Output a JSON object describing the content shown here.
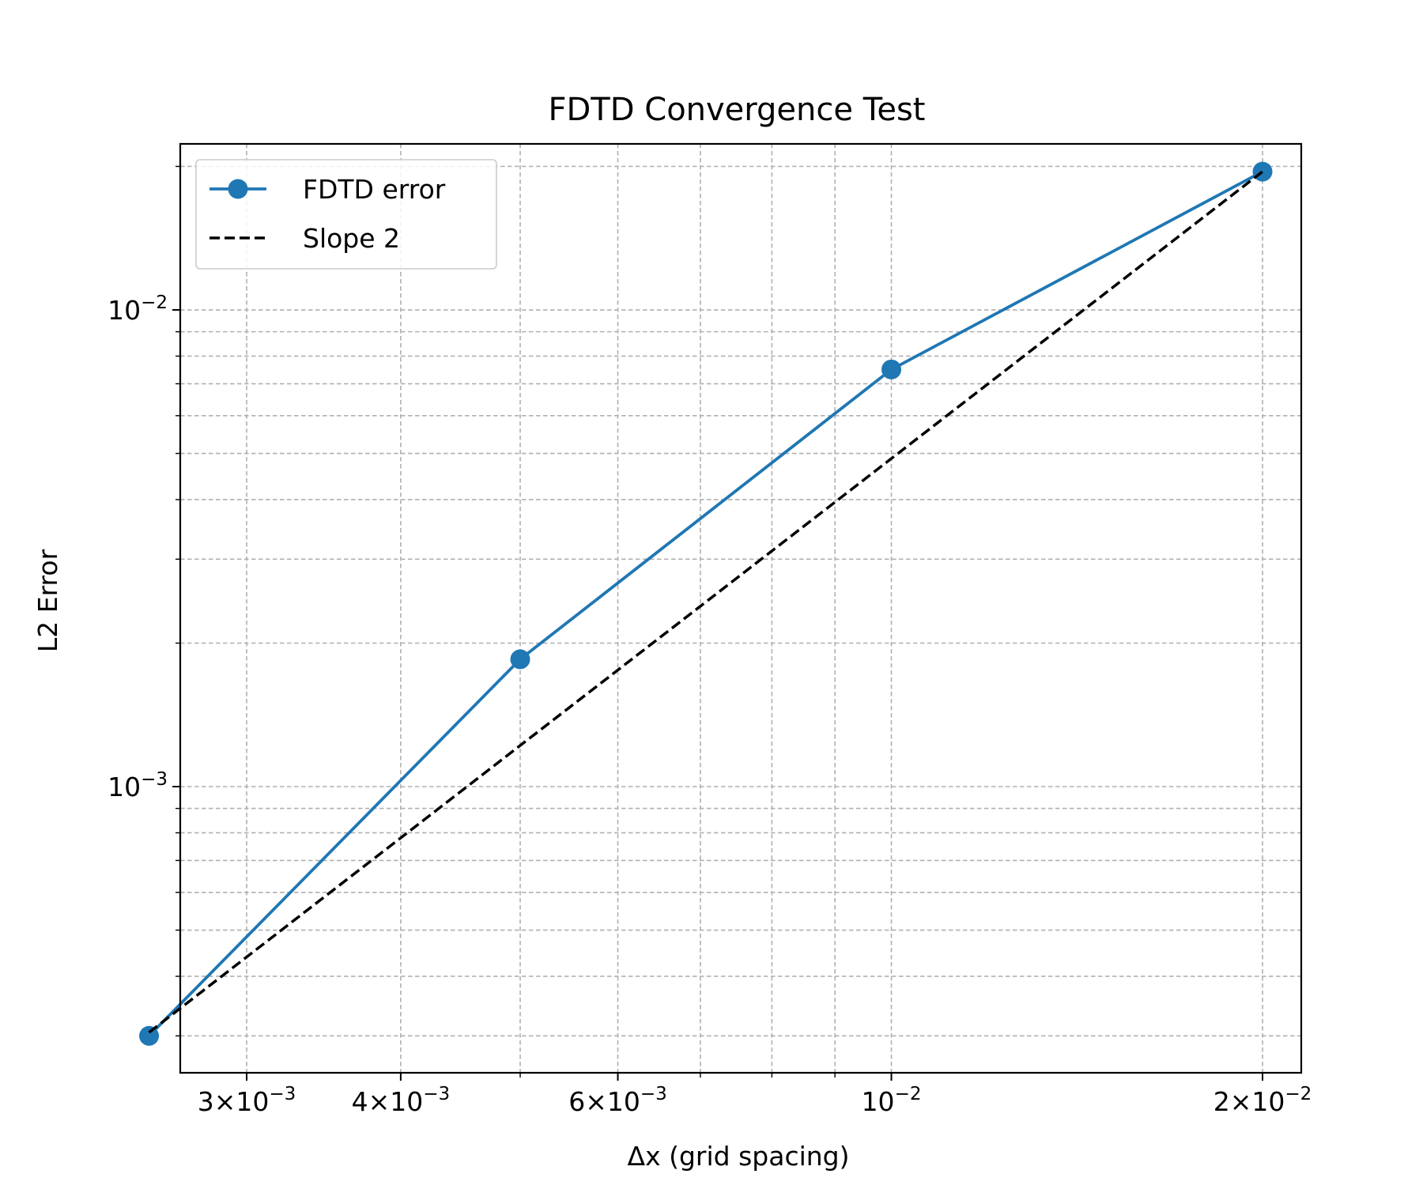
{
  "chart_data": {
    "type": "line",
    "title": "FDTD Convergence Test",
    "xlabel": "Δx (grid spacing)",
    "ylabel": "L2 Error",
    "xscale": "log",
    "yscale": "log",
    "xlim": [
      0.00265,
      0.0215
    ],
    "ylim": [
      0.000251,
      0.0223
    ],
    "grid": true,
    "legend_position": "upper-left",
    "x_major_ticks": [
      {
        "value": 0.003,
        "mantissa": "3",
        "exponent": "−3"
      },
      {
        "value": 0.004,
        "mantissa": "4",
        "exponent": "−3"
      },
      {
        "value": 0.006,
        "mantissa": "6",
        "exponent": "−3"
      },
      {
        "value": 0.01,
        "mantissa": "",
        "exponent": "−2"
      },
      {
        "value": 0.02,
        "mantissa": "2",
        "exponent": "−2"
      }
    ],
    "x_minor_ticks": [
      0.005,
      0.007,
      0.008,
      0.009
    ],
    "y_major_ticks": [
      {
        "value": 0.001,
        "mantissa": "",
        "exponent": "−3"
      },
      {
        "value": 0.01,
        "mantissa": "",
        "exponent": "−2"
      }
    ],
    "y_minor_ticks": [
      0.0003,
      0.0004,
      0.0005,
      0.0006,
      0.0007,
      0.0008,
      0.0009,
      0.002,
      0.003,
      0.004,
      0.005,
      0.006,
      0.007,
      0.008,
      0.009,
      0.02
    ],
    "series": [
      {
        "name": "FDTD error",
        "style": "solid",
        "marker": "circle",
        "color": "#1f77b4",
        "x": [
          0.0025,
          0.005,
          0.01,
          0.02
        ],
        "y": [
          0.0003,
          0.00185,
          0.0075,
          0.0195
        ]
      },
      {
        "name": "Slope 2",
        "style": "dashed",
        "marker": "none",
        "color": "#000000",
        "x": [
          0.0025,
          0.02
        ],
        "y": [
          0.000305,
          0.0195
        ]
      }
    ]
  }
}
